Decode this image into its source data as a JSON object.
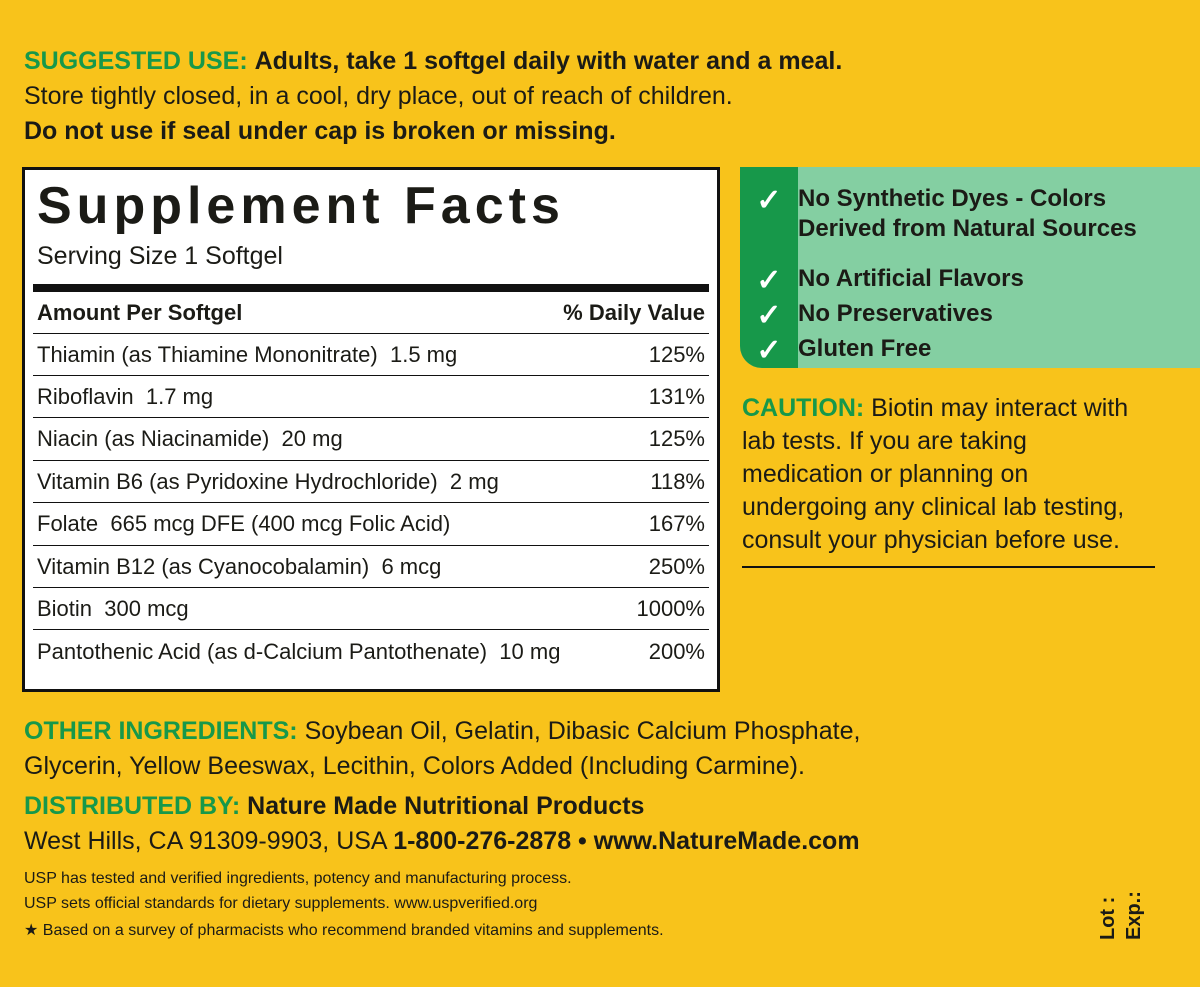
{
  "suggested_use": {
    "label": "SUGGESTED USE:",
    "text": "Adults, take 1 softgel daily with water and a meal.",
    "storage": "Store tightly closed, in a cool, dry place, out of reach of children.",
    "warning": "Do not use if seal under cap is broken or missing."
  },
  "facts": {
    "title": "Supplement Facts",
    "serving": "Serving Size 1 Softgel",
    "header": [
      "Amount Per Softgel",
      "% Daily Value"
    ],
    "rows": [
      [
        "Thiamin (as Thiamine Mononitrate)",
        "1.5 mg",
        "125%"
      ],
      [
        "Riboflavin",
        "1.7 mg",
        "131%"
      ],
      [
        "Niacin (as Niacinamide)",
        "20 mg",
        "125%"
      ],
      [
        "Vitamin B6 (as Pyridoxine Hydrochloride)",
        "2 mg",
        "118%"
      ],
      [
        "Folate",
        "665 mcg DFE (400 mcg Folic Acid)",
        "167%"
      ],
      [
        "Vitamin B12 (as Cyanocobalamin)",
        "6 mcg",
        "250%"
      ],
      [
        "Biotin",
        "300 mcg",
        "1000%"
      ],
      [
        "Pantothenic Acid (as d-Calcium Pantothenate)",
        "10 mg",
        "200%"
      ]
    ]
  },
  "claims": [
    "No Synthetic Dyes - Colors Derived from Natural Sources",
    "No Artificial Flavors",
    "No Preservatives",
    "Gluten Free"
  ],
  "caution": {
    "label": "CAUTION:",
    "text": "Biotin may interact with lab tests. If you are taking medication or planning on undergoing any clinical lab testing, consult your physician before use."
  },
  "other_ingredients": {
    "label": "OTHER INGREDIENTS:",
    "text": "Soybean Oil, Gelatin, Dibasic Calcium Phosphate, Glycerin, Yellow Beeswax, Lecithin, Colors Added (Including Carmine)."
  },
  "distributed": {
    "label": "DISTRIBUTED BY:",
    "company": "Nature Made Nutritional Products",
    "address": "West Hills, CA 91309-9903, USA",
    "contact": "1-800-276-2878 • www.NatureMade.com"
  },
  "footnotes": [
    "USP has tested and verified ingredients, potency and manufacturing process.",
    "USP sets official standards for dietary supplements. www.uspverified.org",
    "★ Based on a survey of pharmacists who recommend branded vitamins and supplements."
  ],
  "lot": "Lot :",
  "exp": "Exp.:"
}
